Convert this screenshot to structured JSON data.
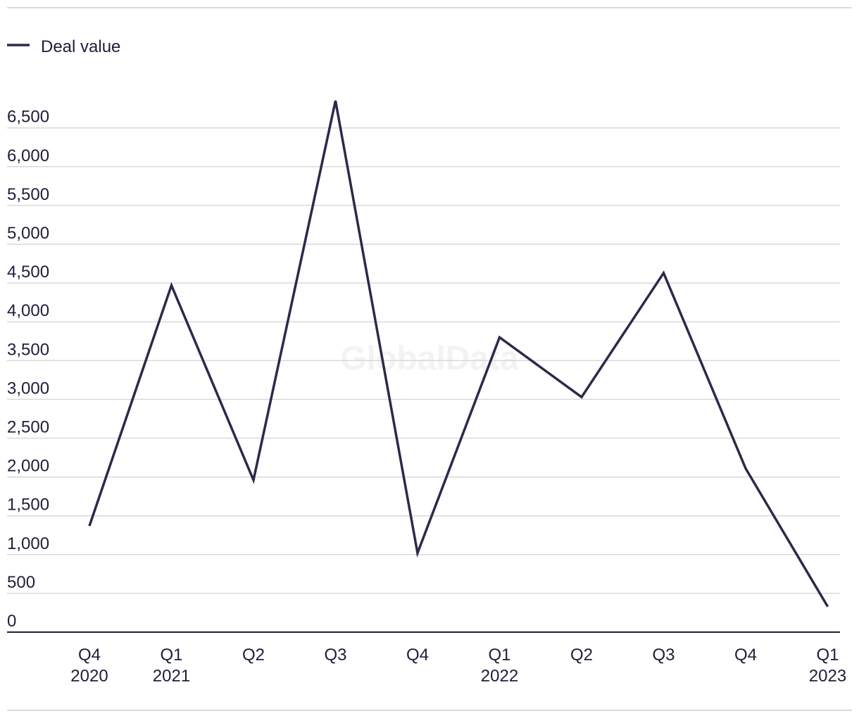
{
  "watermark": "GlobalData",
  "chart_data": {
    "type": "line",
    "categories": [
      [
        "Q4",
        "2020"
      ],
      [
        "Q1",
        "2021"
      ],
      [
        "Q2",
        ""
      ],
      [
        "Q3",
        ""
      ],
      [
        "Q4",
        ""
      ],
      [
        "Q1",
        "2022"
      ],
      [
        "Q2",
        ""
      ],
      [
        "Q3",
        ""
      ],
      [
        "Q4",
        ""
      ],
      [
        "Q1",
        "2023"
      ]
    ],
    "series": [
      {
        "name": "Deal value",
        "color": "#2b2a4a",
        "values": [
          1370,
          4470,
          1960,
          6850,
          1020,
          3800,
          3030,
          4630,
          2110,
          330
        ]
      }
    ],
    "ylim": [
      0,
      6500
    ],
    "yticks": [
      0,
      500,
      1000,
      1500,
      2000,
      2500,
      3000,
      3500,
      4000,
      4500,
      5000,
      5500,
      6000,
      6500
    ],
    "ytick_labels": [
      "0",
      "500",
      "1,000",
      "1,500",
      "2,000",
      "2,500",
      "3,000",
      "3,500",
      "4,000",
      "4,500",
      "5,000",
      "5,500",
      "6,000",
      "6,500"
    ],
    "grid": true,
    "legend": "top-left"
  }
}
